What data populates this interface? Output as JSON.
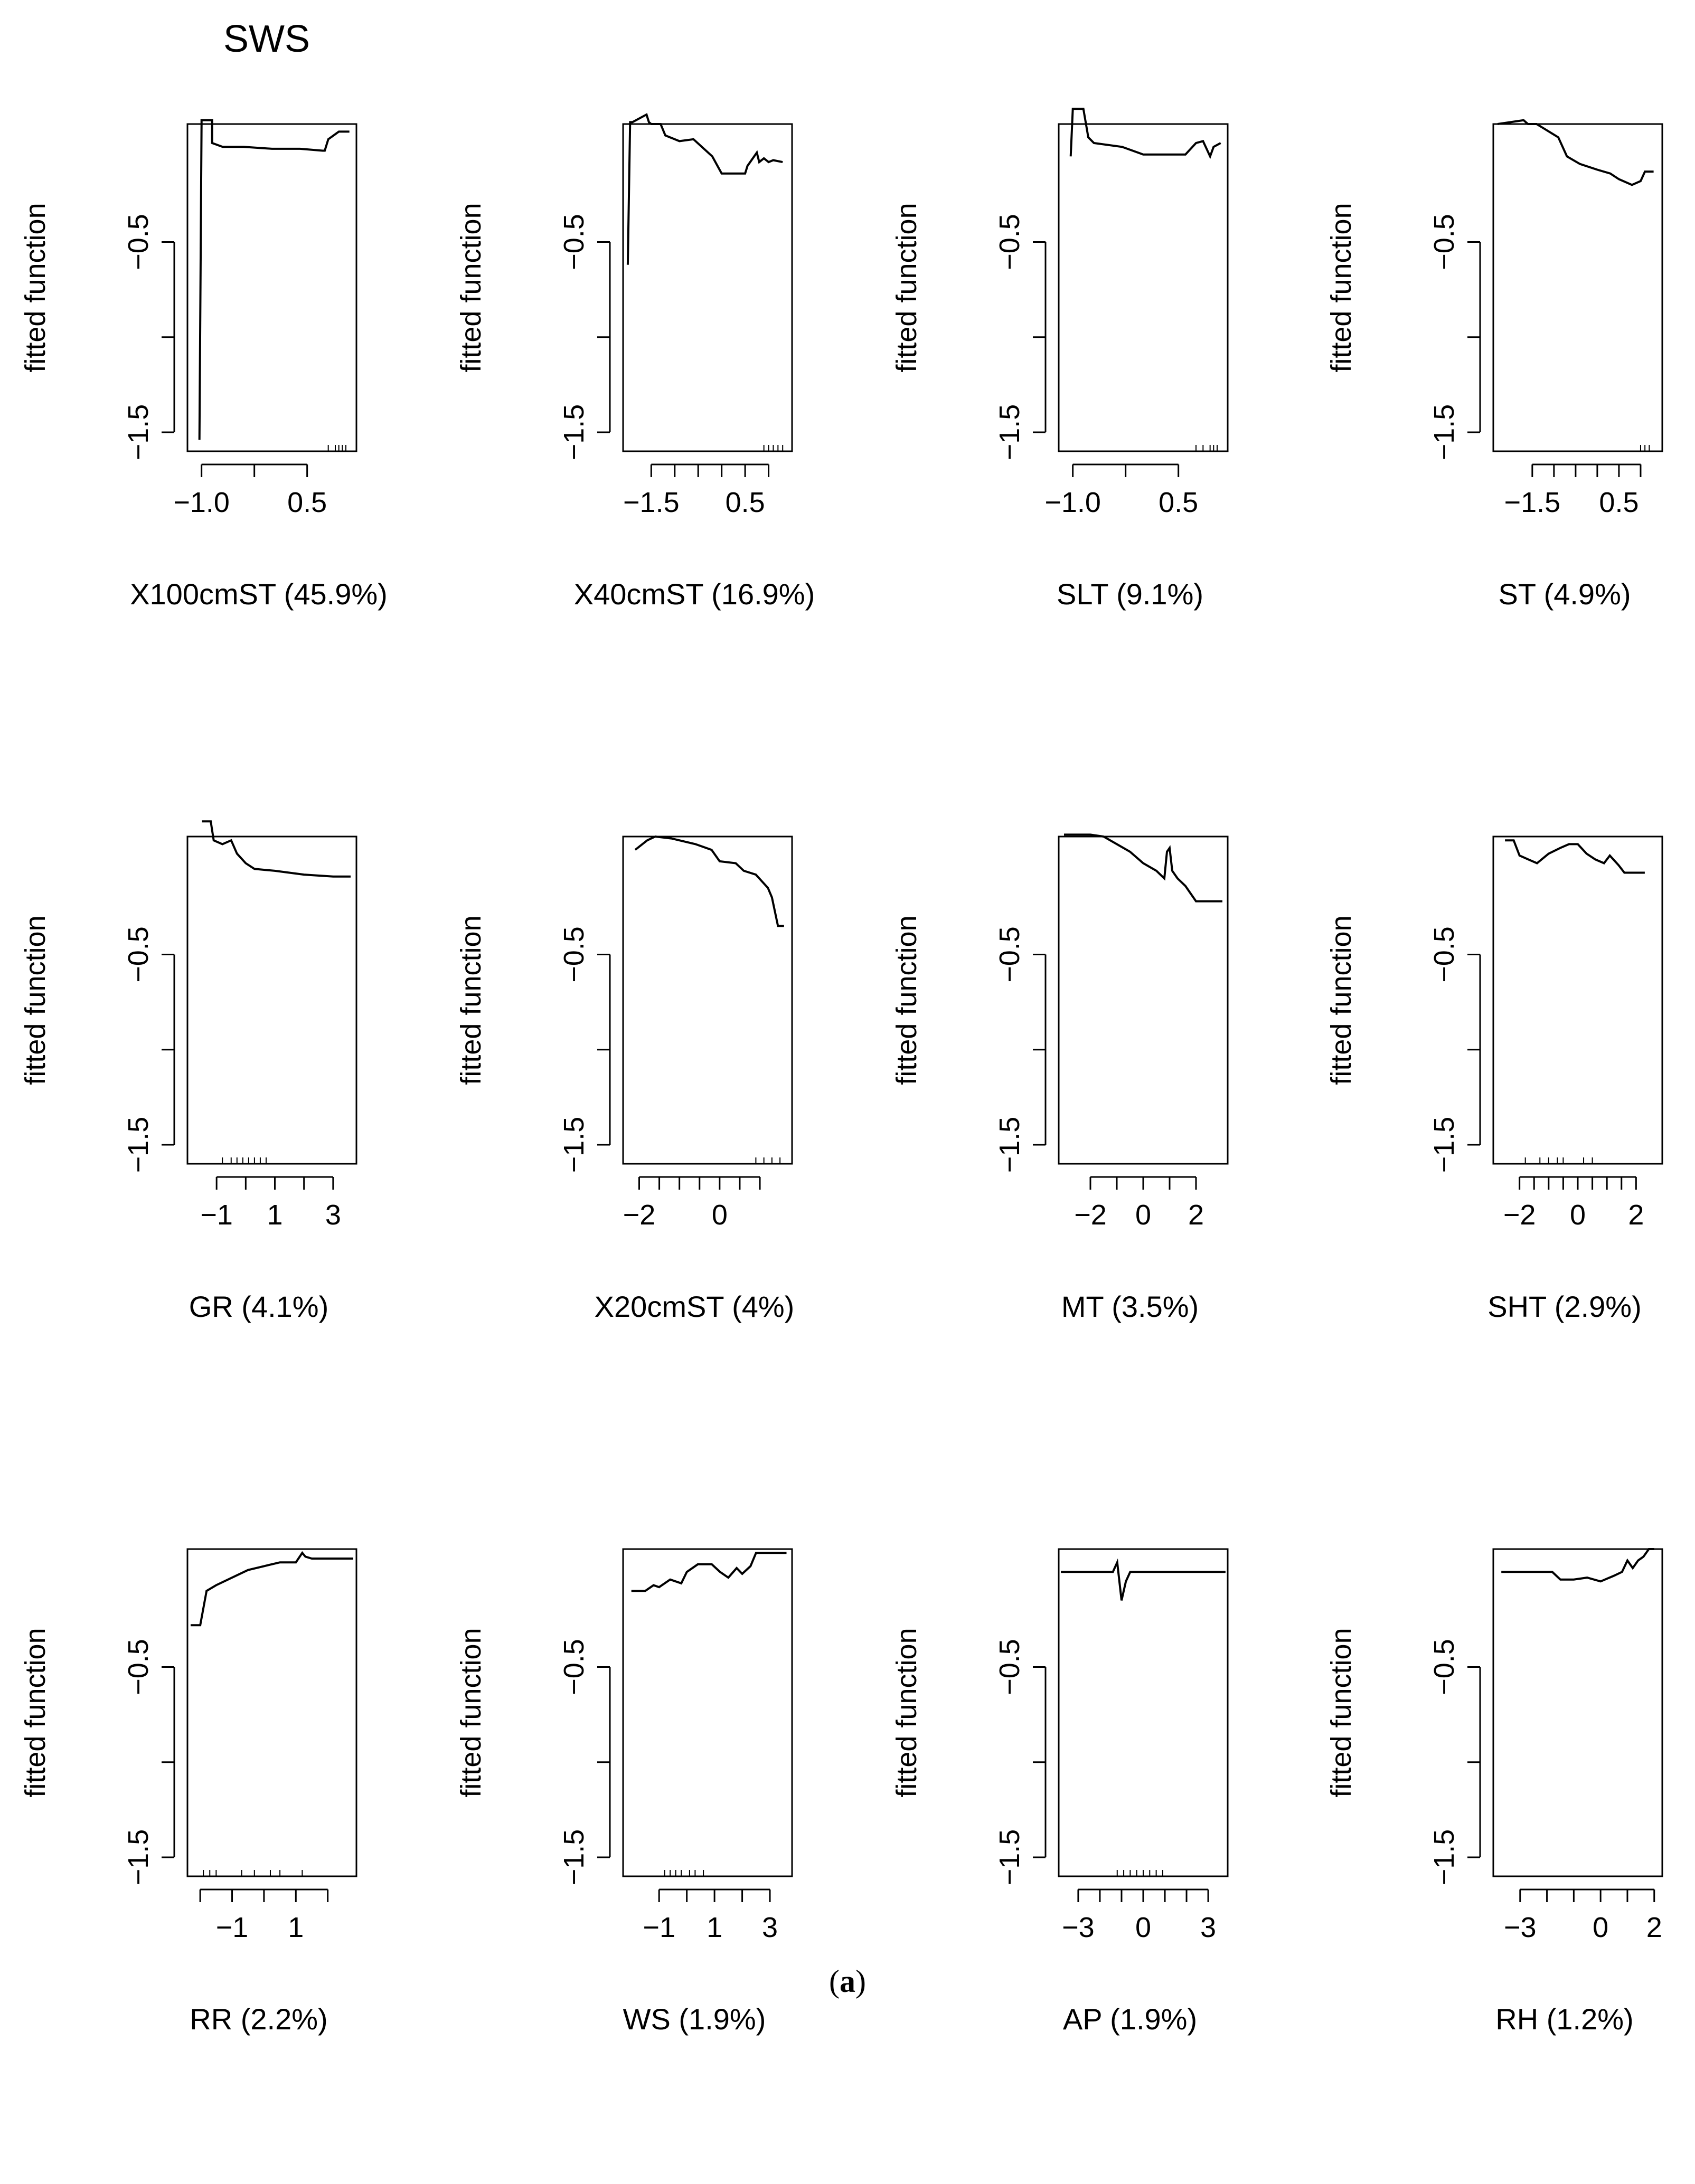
{
  "figure_title": "SWS",
  "caption": {
    "open": "(",
    "letter": "a",
    "close": ")"
  },
  "y_axis_label": "fitted function",
  "chart_data": [
    {
      "type": "line",
      "xlabel": "X100cmST  (45.9%)",
      "ylabel": "fitted function",
      "ylim": [
        -1.6,
        0.12
      ],
      "yticks": [
        -1.5,
        -1.0,
        -0.5
      ],
      "ytick_labels": [
        "-1.5",
        "",
        "-0.5"
      ],
      "xlim": [
        -1.2,
        1.2
      ],
      "xticks": [
        -1.0,
        -0.25,
        0.5
      ],
      "xtick_labels": [
        "-1.0",
        "",
        "0.5"
      ],
      "rug": [
        0.8,
        0.9,
        0.95,
        1.0,
        1.05
      ],
      "x": [
        -1.03,
        -1.0,
        -1.0,
        -0.85,
        -0.85,
        -0.7,
        -0.4,
        0.0,
        0.4,
        0.72,
        0.75,
        0.8,
        0.95,
        1.1
      ],
      "y": [
        -1.54,
        0.12,
        0.14,
        0.14,
        0.02,
        0.0,
        0.0,
        -0.01,
        -0.01,
        -0.02,
        -0.02,
        0.04,
        0.08,
        0.08
      ]
    },
    {
      "type": "line",
      "xlabel": "X40cmST  (16.9%)",
      "ylabel": "fitted function",
      "ylim": [
        -1.6,
        0.12
      ],
      "yticks": [
        -1.5,
        -1.0,
        -0.5
      ],
      "ytick_labels": [
        "-1.5",
        "",
        "-0.5"
      ],
      "xlim": [
        -2.1,
        1.5
      ],
      "xticks": [
        -1.5,
        -1.0,
        -0.5,
        0.0,
        0.5,
        1.0
      ],
      "xtick_labels": [
        "-1.5",
        "",
        "",
        "",
        "0.5",
        ""
      ],
      "rug": [
        0.9,
        1.0,
        1.1,
        1.2,
        1.3
      ],
      "x": [
        -2.0,
        -1.95,
        -1.9,
        -1.6,
        -1.55,
        -1.5,
        -1.3,
        -1.2,
        -0.9,
        -0.6,
        -0.2,
        0.0,
        0.5,
        0.55,
        0.75,
        0.8,
        0.9,
        1.0,
        1.1,
        1.3
      ],
      "y": [
        -0.62,
        0.13,
        0.13,
        0.17,
        0.13,
        0.12,
        0.12,
        0.06,
        0.03,
        0.04,
        -0.05,
        -0.14,
        -0.14,
        -0.1,
        -0.03,
        -0.08,
        -0.06,
        -0.08,
        -0.07,
        -0.08
      ]
    },
    {
      "type": "line",
      "xlabel": "SLT  (9.1%)",
      "ylabel": "fitted function",
      "ylim": [
        -1.6,
        0.12
      ],
      "yticks": [
        -1.5,
        -1.0,
        -0.5
      ],
      "ytick_labels": [
        "-1.5",
        "",
        "-0.5"
      ],
      "xlim": [
        -1.2,
        1.2
      ],
      "xticks": [
        -1.0,
        -0.25,
        0.5
      ],
      "xtick_labels": [
        "-1.0",
        "",
        "0.5"
      ],
      "rug": [
        0.75,
        0.85,
        0.95,
        1.0,
        1.05
      ],
      "x": [
        -1.03,
        -1.0,
        -0.85,
        -0.78,
        -0.7,
        -0.3,
        0.0,
        0.4,
        0.6,
        0.75,
        0.85,
        0.95,
        1.0,
        1.1
      ],
      "y": [
        -0.05,
        0.2,
        0.2,
        0.05,
        0.02,
        0.0,
        -0.04,
        -0.04,
        -0.04,
        0.02,
        0.03,
        -0.05,
        0.0,
        0.02
      ]
    },
    {
      "type": "line",
      "xlabel": "ST  (4.9%)",
      "ylabel": "fitted function",
      "ylim": [
        -1.6,
        0.12
      ],
      "yticks": [
        -1.5,
        -1.0,
        -0.5
      ],
      "ytick_labels": [
        "-1.5",
        "",
        "-0.5"
      ],
      "xlim": [
        -2.4,
        1.5
      ],
      "xticks": [
        -1.5,
        -1.0,
        -0.5,
        0.0,
        0.5,
        1.0
      ],
      "xtick_labels": [
        "-1.5",
        "",
        "",
        "",
        "0.5",
        ""
      ],
      "rug": [
        1.0,
        1.1,
        1.2
      ],
      "x": [
        -2.3,
        -2.0,
        -1.7,
        -1.6,
        -1.4,
        -0.9,
        -0.7,
        -0.4,
        0.0,
        0.3,
        0.5,
        0.8,
        1.0,
        1.1,
        1.3
      ],
      "y": [
        0.12,
        0.13,
        0.14,
        0.12,
        0.12,
        0.05,
        -0.05,
        -0.09,
        -0.12,
        -0.14,
        -0.17,
        -0.2,
        -0.18,
        -0.13,
        -0.13
      ]
    },
    {
      "type": "line",
      "xlabel": "GR  (4.1%)",
      "ylabel": "fitted function",
      "ylim": [
        -1.6,
        0.12
      ],
      "yticks": [
        -1.5,
        -1.0,
        -0.5
      ],
      "ytick_labels": [
        "-1.5",
        "",
        "-0.5"
      ],
      "xlim": [
        -2.0,
        3.8
      ],
      "xticks": [
        -1,
        0,
        1,
        2,
        3
      ],
      "xtick_labels": [
        "-1",
        "",
        "1",
        "",
        "3"
      ],
      "rug": [
        -0.8,
        -0.5,
        -0.3,
        -0.1,
        0.1,
        0.3,
        0.5,
        0.7
      ],
      "x": [
        -1.5,
        -1.2,
        -1.1,
        -0.8,
        -0.5,
        -0.3,
        0.0,
        0.3,
        1.0,
        2.0,
        3.0,
        3.6
      ],
      "y": [
        0.2,
        0.2,
        0.1,
        0.08,
        0.1,
        0.03,
        -0.02,
        -0.05,
        -0.06,
        -0.08,
        -0.09,
        -0.09
      ]
    },
    {
      "type": "line",
      "xlabel": "X20cmST  (4%)",
      "ylabel": "fitted function",
      "ylim": [
        -1.6,
        0.12
      ],
      "yticks": [
        -1.5,
        -1.0,
        -0.5
      ],
      "ytick_labels": [
        "-1.5",
        "",
        "-0.5"
      ],
      "xlim": [
        -2.4,
        1.8
      ],
      "xticks": [
        -2,
        -1.5,
        -1,
        -0.5,
        0,
        0.5,
        1
      ],
      "xtick_labels": [
        "-2",
        "",
        "",
        "",
        "0",
        "",
        ""
      ],
      "rug": [
        0.9,
        1.1,
        1.3,
        1.5
      ],
      "x": [
        -2.1,
        -1.8,
        -1.6,
        -1.2,
        -1.0,
        -0.6,
        -0.2,
        0.0,
        0.4,
        0.6,
        0.9,
        1.2,
        1.3,
        1.45,
        1.6
      ],
      "y": [
        0.05,
        0.1,
        0.12,
        0.11,
        0.1,
        0.08,
        0.05,
        -0.01,
        -0.02,
        -0.06,
        -0.08,
        -0.15,
        -0.2,
        -0.35,
        -0.35
      ]
    },
    {
      "type": "line",
      "xlabel": "MT  (3.5%)",
      "ylabel": "fitted function",
      "ylim": [
        -1.6,
        0.12
      ],
      "yticks": [
        -1.5,
        -1.0,
        -0.5
      ],
      "ytick_labels": [
        "-1.5",
        "",
        "-0.5"
      ],
      "xlim": [
        -3.2,
        3.2
      ],
      "xticks": [
        -2,
        -1,
        0,
        1,
        2
      ],
      "xtick_labels": [
        "-2",
        "",
        "0",
        "",
        "2"
      ],
      "rug": [],
      "x": [
        -3.0,
        -2.0,
        -1.5,
        -1.0,
        -0.5,
        0.0,
        0.5,
        0.8,
        0.9,
        1.0,
        1.1,
        1.3,
        1.6,
        2.0,
        3.0
      ],
      "y": [
        0.13,
        0.13,
        0.12,
        0.08,
        0.04,
        -0.02,
        -0.06,
        -0.1,
        0.04,
        0.06,
        -0.06,
        -0.1,
        -0.14,
        -0.22,
        -0.22
      ]
    },
    {
      "type": "line",
      "xlabel": "SHT  (2.9%)",
      "ylabel": "fitted function",
      "ylim": [
        -1.6,
        0.12
      ],
      "yticks": [
        -1.5,
        -1.0,
        -0.5
      ],
      "ytick_labels": [
        "-1.5",
        "",
        "-0.5"
      ],
      "xlim": [
        -2.9,
        2.9
      ],
      "xticks": [
        -2,
        -1.5,
        -1,
        -0.5,
        0,
        0.5,
        1,
        1.5,
        2
      ],
      "xtick_labels": [
        "-2",
        "",
        "",
        "",
        "0",
        "",
        "",
        "",
        "2"
      ],
      "rug": [
        -1.8,
        -1.3,
        -1.0,
        -0.7,
        -0.5,
        0.2,
        0.5
      ],
      "x": [
        -2.5,
        -2.2,
        -2.0,
        -1.7,
        -1.4,
        -1.0,
        -0.6,
        -0.3,
        0.0,
        0.3,
        0.6,
        0.9,
        1.1,
        1.4,
        1.6,
        2.3
      ],
      "y": [
        0.1,
        0.1,
        0.02,
        0.0,
        -0.02,
        0.03,
        0.06,
        0.08,
        0.08,
        0.03,
        0.0,
        -0.02,
        0.02,
        -0.03,
        -0.07,
        -0.07
      ]
    },
    {
      "type": "line",
      "xlabel": "RR  (2.2%)",
      "ylabel": "fitted function",
      "ylim": [
        -1.6,
        0.12
      ],
      "yticks": [
        -1.5,
        -1.0,
        -0.5
      ],
      "ytick_labels": [
        "-1.5",
        "",
        "-0.5"
      ],
      "xlim": [
        -2.4,
        2.9
      ],
      "xticks": [
        -2,
        -1,
        0,
        1,
        2
      ],
      "xtick_labels": [
        "",
        "-1",
        "",
        "1",
        ""
      ],
      "rug": [
        -1.9,
        -1.7,
        -1.5,
        -0.7,
        -0.3,
        0.2,
        0.5,
        1.2
      ],
      "x": [
        -2.3,
        -2.0,
        -1.8,
        -1.5,
        -1.0,
        -0.5,
        0.0,
        0.5,
        1.0,
        1.2,
        1.3,
        1.5,
        2.8
      ],
      "y": [
        -0.28,
        -0.28,
        -0.1,
        -0.07,
        -0.03,
        0.01,
        0.03,
        0.05,
        0.05,
        0.1,
        0.08,
        0.07,
        0.07
      ]
    },
    {
      "type": "line",
      "xlabel": "WS  (1.9%)",
      "ylabel": "fitted function",
      "ylim": [
        -1.6,
        0.12
      ],
      "yticks": [
        -1.5,
        -1.0,
        -0.5
      ],
      "ytick_labels": [
        "-1.5",
        "",
        "-0.5"
      ],
      "xlim": [
        -2.3,
        3.8
      ],
      "xticks": [
        -1,
        0,
        1,
        2,
        3
      ],
      "xtick_labels": [
        "-1",
        "",
        "1",
        "",
        "3"
      ],
      "rug": [
        -0.8,
        -0.6,
        -0.4,
        -0.2,
        0.1,
        0.3,
        0.6
      ],
      "x": [
        -2.0,
        -1.5,
        -1.2,
        -1.0,
        -0.6,
        -0.2,
        0.0,
        0.4,
        0.9,
        1.2,
        1.5,
        1.8,
        2.0,
        2.3,
        2.5,
        2.6,
        3.6
      ],
      "y": [
        -0.1,
        -0.1,
        -0.07,
        -0.08,
        -0.04,
        -0.06,
        0.0,
        0.04,
        0.04,
        0.0,
        -0.03,
        0.02,
        -0.01,
        0.03,
        0.1,
        0.1,
        0.1
      ]
    },
    {
      "type": "line",
      "xlabel": "AP  (1.9%)",
      "ylabel": "fitted function",
      "ylim": [
        -1.6,
        0.12
      ],
      "yticks": [
        -1.5,
        -1.0,
        -0.5
      ],
      "ytick_labels": [
        "-1.5",
        "",
        "-0.5"
      ],
      "xlim": [
        -3.9,
        3.9
      ],
      "xticks": [
        -3,
        -2,
        -1,
        0,
        1,
        2,
        3
      ],
      "xtick_labels": [
        "-3",
        "",
        "",
        "0",
        "",
        "",
        "3"
      ],
      "rug": [
        -1.2,
        -0.9,
        -0.6,
        -0.3,
        0.0,
        0.3,
        0.6,
        0.9
      ],
      "x": [
        -3.8,
        -1.8,
        -1.4,
        -1.2,
        -1.0,
        -0.8,
        -0.6,
        -0.2,
        1.0,
        3.8
      ],
      "y": [
        0.0,
        0.0,
        0.0,
        0.05,
        -0.15,
        -0.05,
        0.0,
        0.0,
        0.0,
        0.0
      ]
    },
    {
      "type": "line",
      "xlabel": "RH  (1.2%)",
      "ylabel": "fitted function",
      "ylim": [
        -1.6,
        0.12
      ],
      "yticks": [
        -1.5,
        -1.0,
        -0.5
      ],
      "ytick_labels": [
        "-1.5",
        "",
        "-0.5"
      ],
      "xlim": [
        -4.0,
        2.3
      ],
      "xticks": [
        -3,
        -2,
        -1,
        0,
        1,
        2
      ],
      "xtick_labels": [
        "-3",
        "",
        "",
        "0",
        "",
        "2"
      ],
      "rug": [],
      "x": [
        -3.7,
        -1.8,
        -1.5,
        -1.0,
        -0.5,
        0.0,
        0.5,
        0.8,
        1.0,
        1.2,
        1.4,
        1.6,
        1.8,
        2.0
      ],
      "y": [
        0.0,
        0.0,
        -0.04,
        -0.04,
        -0.03,
        -0.05,
        -0.02,
        0.0,
        0.06,
        0.02,
        0.06,
        0.08,
        0.12,
        0.12
      ]
    }
  ]
}
